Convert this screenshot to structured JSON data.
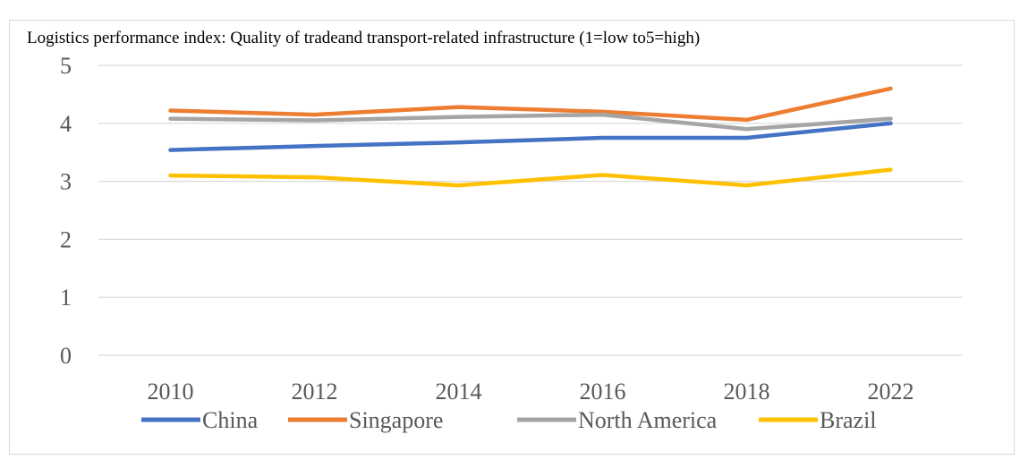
{
  "chart_data": {
    "type": "line",
    "title": "Logistics performance index: Quality of tradeand transport-related infrastructure (1=low to5=high)",
    "categories": [
      "2010",
      "2012",
      "2014",
      "2016",
      "2018",
      "2022"
    ],
    "ylim": [
      0,
      5
    ],
    "yticks": [
      "0",
      "1",
      "2",
      "3",
      "4",
      "5"
    ],
    "grid": true,
    "legend_position": "bottom",
    "series": [
      {
        "name": "China",
        "color": "#4472c4",
        "values": [
          3.54,
          3.61,
          3.67,
          3.75,
          3.75,
          4.0
        ]
      },
      {
        "name": "Singapore",
        "color": "#ed7d31",
        "values": [
          4.22,
          4.15,
          4.28,
          4.2,
          4.06,
          4.6
        ]
      },
      {
        "name": "North America",
        "color": "#a5a5a5",
        "values": [
          4.08,
          4.05,
          4.11,
          4.15,
          3.9,
          4.08
        ]
      },
      {
        "name": "Brazil",
        "color": "#ffc000",
        "values": [
          3.1,
          3.07,
          2.93,
          3.11,
          2.93,
          3.2
        ]
      }
    ]
  }
}
